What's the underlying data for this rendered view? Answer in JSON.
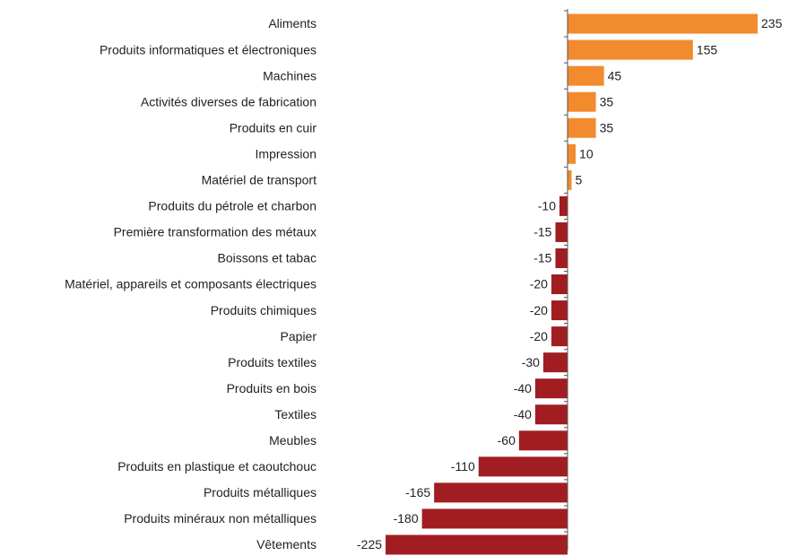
{
  "chart_data": {
    "type": "hbar",
    "categories": [
      "Aliments",
      "Produits informatiques et électroniques",
      "Machines",
      "Activités diverses de fabrication",
      "Produits en cuir",
      "Impression",
      "Matériel de transport",
      "Produits du pétrole et charbon",
      "Première transformation des métaux",
      "Boissons et tabac",
      "Matériel, appareils et composants électriques",
      "Produits chimiques",
      "Papier",
      "Produits textiles",
      "Produits en bois",
      "Textiles",
      "Meubles",
      "Produits en plastique et caoutchouc",
      "Produits métalliques",
      "Produits minéraux non métalliques",
      "Vêtements"
    ],
    "values": [
      235,
      155,
      45,
      35,
      35,
      10,
      5,
      -10,
      -15,
      -15,
      -20,
      -20,
      -20,
      -30,
      -40,
      -40,
      -60,
      -110,
      -165,
      -180,
      -225
    ],
    "colors": {
      "positive": "#f28a2e",
      "negative": "#a11d22"
    },
    "xlim": [
      -245,
      235
    ]
  }
}
